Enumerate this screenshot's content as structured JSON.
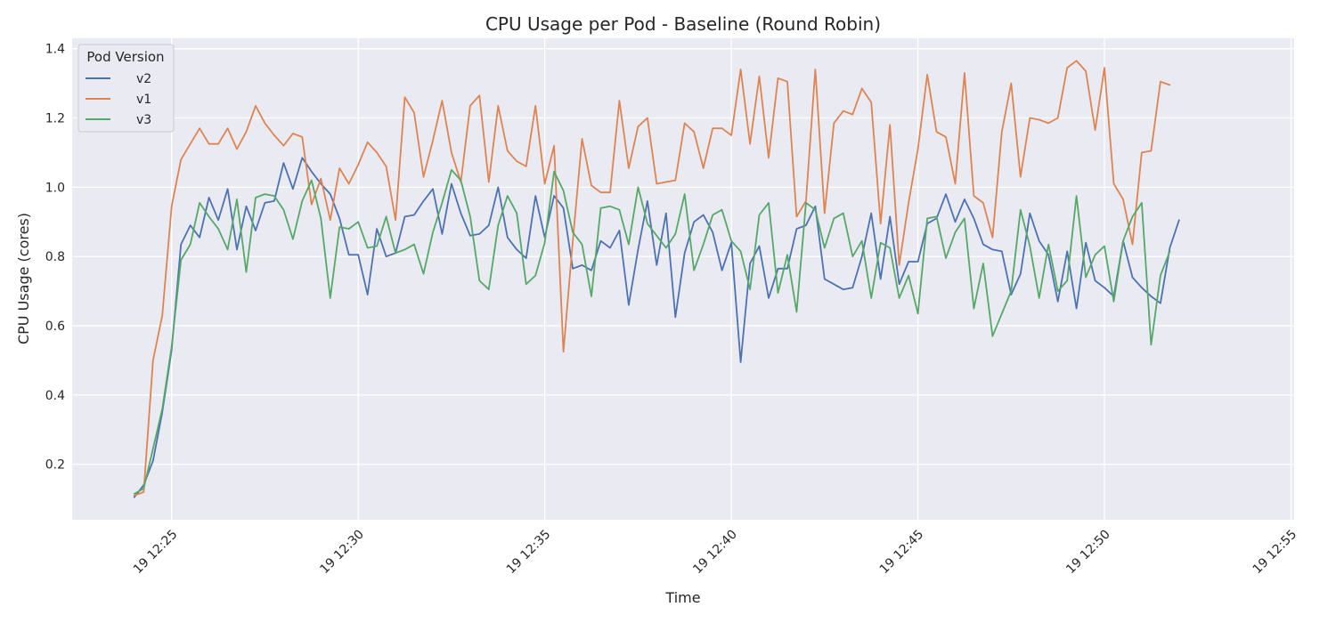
{
  "chart_data": {
    "type": "line",
    "title": "CPU Usage per Pod - Baseline (Round Robin)",
    "xlabel": "Time",
    "ylabel": "CPU Usage (cores)",
    "x_start": "19 12:24",
    "x_step_minutes": 0.25,
    "xlim": [
      "19 12:22:20",
      "19 12:55:05"
    ],
    "ylim": [
      0.04,
      1.43
    ],
    "x_ticks": [
      "19 12:25",
      "19 12:30",
      "19 12:35",
      "19 12:40",
      "19 12:45",
      "19 12:50",
      "19 12:55"
    ],
    "y_ticks": [
      "0.2",
      "0.4",
      "0.6",
      "0.8",
      "1.0",
      "1.2",
      "1.4"
    ],
    "grid": true,
    "legend": {
      "title": "Pod Version",
      "placement": "top-left"
    },
    "series": [
      {
        "name": "v2",
        "color": "#4c72b0",
        "values": [
          0.105,
          0.14,
          0.21,
          0.35,
          0.53,
          0.835,
          0.89,
          0.855,
          0.97,
          0.905,
          0.995,
          0.82,
          0.945,
          0.875,
          0.955,
          0.96,
          1.07,
          0.995,
          1.085,
          1.045,
          1.01,
          0.98,
          0.91,
          0.805,
          0.805,
          0.69,
          0.88,
          0.8,
          0.81,
          0.915,
          0.92,
          0.96,
          0.995,
          0.865,
          1.01,
          0.925,
          0.86,
          0.865,
          0.89,
          1.0,
          0.855,
          0.82,
          0.795,
          0.975,
          0.855,
          0.975,
          0.94,
          0.765,
          0.775,
          0.76,
          0.845,
          0.825,
          0.875,
          0.66,
          0.82,
          0.96,
          0.775,
          0.925,
          0.625,
          0.81,
          0.9,
          0.92,
          0.87,
          0.76,
          0.84,
          0.495,
          0.78,
          0.83,
          0.68,
          0.765,
          0.765,
          0.88,
          0.89,
          0.945,
          0.735,
          0.72,
          0.705,
          0.71,
          0.8,
          0.925,
          0.735,
          0.915,
          0.72,
          0.785,
          0.785,
          0.895,
          0.91,
          0.98,
          0.9,
          0.965,
          0.91,
          0.835,
          0.82,
          0.815,
          0.69,
          0.75,
          0.925,
          0.845,
          0.805,
          0.67,
          0.815,
          0.65,
          0.84,
          0.73,
          0.71,
          0.685,
          0.845,
          0.74,
          0.71,
          0.685,
          0.665,
          0.825,
          0.905
        ]
      },
      {
        "name": "v1",
        "color": "#dd8452",
        "values": [
          0.11,
          0.12,
          0.5,
          0.63,
          0.945,
          1.08,
          1.125,
          1.17,
          1.125,
          1.125,
          1.17,
          1.11,
          1.16,
          1.235,
          1.185,
          1.15,
          1.12,
          1.155,
          1.145,
          0.95,
          1.025,
          0.905,
          1.055,
          1.01,
          1.065,
          1.13,
          1.1,
          1.06,
          0.905,
          1.26,
          1.215,
          1.03,
          1.135,
          1.25,
          1.1,
          1.015,
          1.235,
          1.265,
          1.015,
          1.235,
          1.105,
          1.075,
          1.06,
          1.235,
          1.01,
          1.12,
          0.525,
          0.845,
          1.14,
          1.005,
          0.985,
          0.985,
          1.25,
          1.055,
          1.175,
          1.2,
          1.01,
          1.015,
          1.02,
          1.185,
          1.16,
          1.055,
          1.17,
          1.17,
          1.15,
          1.34,
          1.125,
          1.32,
          1.085,
          1.315,
          1.305,
          0.915,
          0.96,
          1.34,
          0.925,
          1.185,
          1.22,
          1.21,
          1.285,
          1.245,
          0.895,
          1.18,
          0.775,
          0.955,
          1.11,
          1.325,
          1.16,
          1.145,
          1.01,
          1.33,
          0.975,
          0.955,
          0.855,
          1.16,
          1.3,
          1.03,
          1.2,
          1.195,
          1.185,
          1.2,
          1.345,
          1.365,
          1.335,
          1.165,
          1.345,
          1.01,
          0.965,
          0.835,
          1.1,
          1.105,
          1.305,
          1.295
        ]
      },
      {
        "name": "v3",
        "color": "#55a868",
        "values": [
          0.115,
          0.13,
          0.245,
          0.36,
          0.54,
          0.79,
          0.835,
          0.955,
          0.915,
          0.88,
          0.82,
          0.965,
          0.755,
          0.97,
          0.98,
          0.975,
          0.935,
          0.85,
          0.96,
          1.02,
          0.91,
          0.68,
          0.885,
          0.88,
          0.9,
          0.825,
          0.83,
          0.915,
          0.81,
          0.82,
          0.835,
          0.75,
          0.87,
          0.955,
          1.05,
          1.02,
          0.915,
          0.73,
          0.705,
          0.89,
          0.975,
          0.925,
          0.72,
          0.745,
          0.84,
          1.045,
          0.99,
          0.87,
          0.835,
          0.685,
          0.94,
          0.945,
          0.935,
          0.835,
          1.0,
          0.895,
          0.86,
          0.825,
          0.865,
          0.98,
          0.76,
          0.835,
          0.92,
          0.935,
          0.845,
          0.815,
          0.705,
          0.92,
          0.955,
          0.695,
          0.805,
          0.64,
          0.955,
          0.935,
          0.825,
          0.91,
          0.925,
          0.8,
          0.845,
          0.68,
          0.84,
          0.825,
          0.68,
          0.745,
          0.635,
          0.91,
          0.915,
          0.795,
          0.87,
          0.91,
          0.65,
          0.78,
          0.57,
          0.635,
          0.7,
          0.935,
          0.83,
          0.68,
          0.835,
          0.7,
          0.73,
          0.975,
          0.74,
          0.805,
          0.83,
          0.67,
          0.845,
          0.915,
          0.955,
          0.545,
          0.745,
          0.815
        ]
      }
    ]
  }
}
